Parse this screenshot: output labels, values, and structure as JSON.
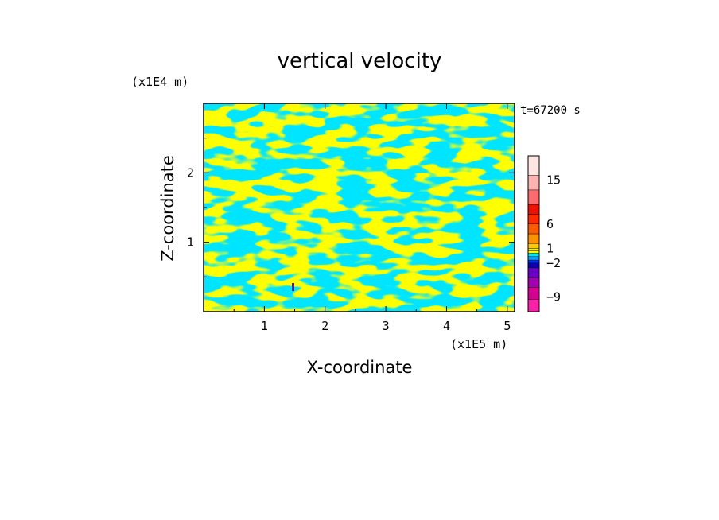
{
  "chart_data": {
    "type": "heatmap",
    "title": "vertical velocity",
    "xlabel": "X-coordinate",
    "ylabel": "Z-coordinate",
    "x_scale_label": "(x1E5 m)",
    "y_scale_label": "(x1E4 m)",
    "time_label": "t=67200 s",
    "xlim": [
      0,
      5.12
    ],
    "ylim": [
      0,
      3.0
    ],
    "x_ticks": [
      1,
      2,
      3,
      4,
      5
    ],
    "x_tick_labels": [
      "1",
      "2",
      "3",
      "4",
      "5"
    ],
    "y_ticks": [
      1,
      2
    ],
    "y_tick_labels": [
      "1",
      "2"
    ],
    "field_colors": {
      "positive": "#ffff00",
      "negative": "#00e5ff",
      "patch": "#6600cc"
    },
    "colorbar": {
      "tick_labels": [
        {
          "value": 15,
          "text": "15"
        },
        {
          "value": 6,
          "text": "6"
        },
        {
          "value": 1,
          "text": "1"
        },
        {
          "value": -2,
          "text": "−2"
        },
        {
          "value": -9,
          "text": "−9"
        }
      ],
      "levels": [
        {
          "from": -12,
          "to": -9.5,
          "color": "#ff1fa8"
        },
        {
          "from": -9.5,
          "to": -7,
          "color": "#d60090"
        },
        {
          "from": -7,
          "to": -5,
          "color": "#a000b0"
        },
        {
          "from": -5,
          "to": -3,
          "color": "#6a00c8"
        },
        {
          "from": -3,
          "to": -2,
          "color": "#0a00b0"
        },
        {
          "from": -2,
          "to": -1.4,
          "color": "#0030ff"
        },
        {
          "from": -1.4,
          "to": -0.7,
          "color": "#00a0ff"
        },
        {
          "from": -0.7,
          "to": 0,
          "color": "#00e5ff"
        },
        {
          "from": 0,
          "to": 0.5,
          "color": "#ffff00"
        },
        {
          "from": 0.5,
          "to": 1,
          "color": "#ffee00"
        },
        {
          "from": 1,
          "to": 2,
          "color": "#ffc800"
        },
        {
          "from": 2,
          "to": 4,
          "color": "#ff9000"
        },
        {
          "from": 4,
          "to": 6,
          "color": "#ff5a00"
        },
        {
          "from": 6,
          "to": 8,
          "color": "#ff2a00"
        },
        {
          "from": 8,
          "to": 10,
          "color": "#ee1100"
        },
        {
          "from": 10,
          "to": 13,
          "color": "#ff6a70"
        },
        {
          "from": 13,
          "to": 16,
          "color": "#ffb4b4"
        },
        {
          "from": 16,
          "to": 20,
          "color": "#ffe6e2"
        }
      ]
    }
  }
}
